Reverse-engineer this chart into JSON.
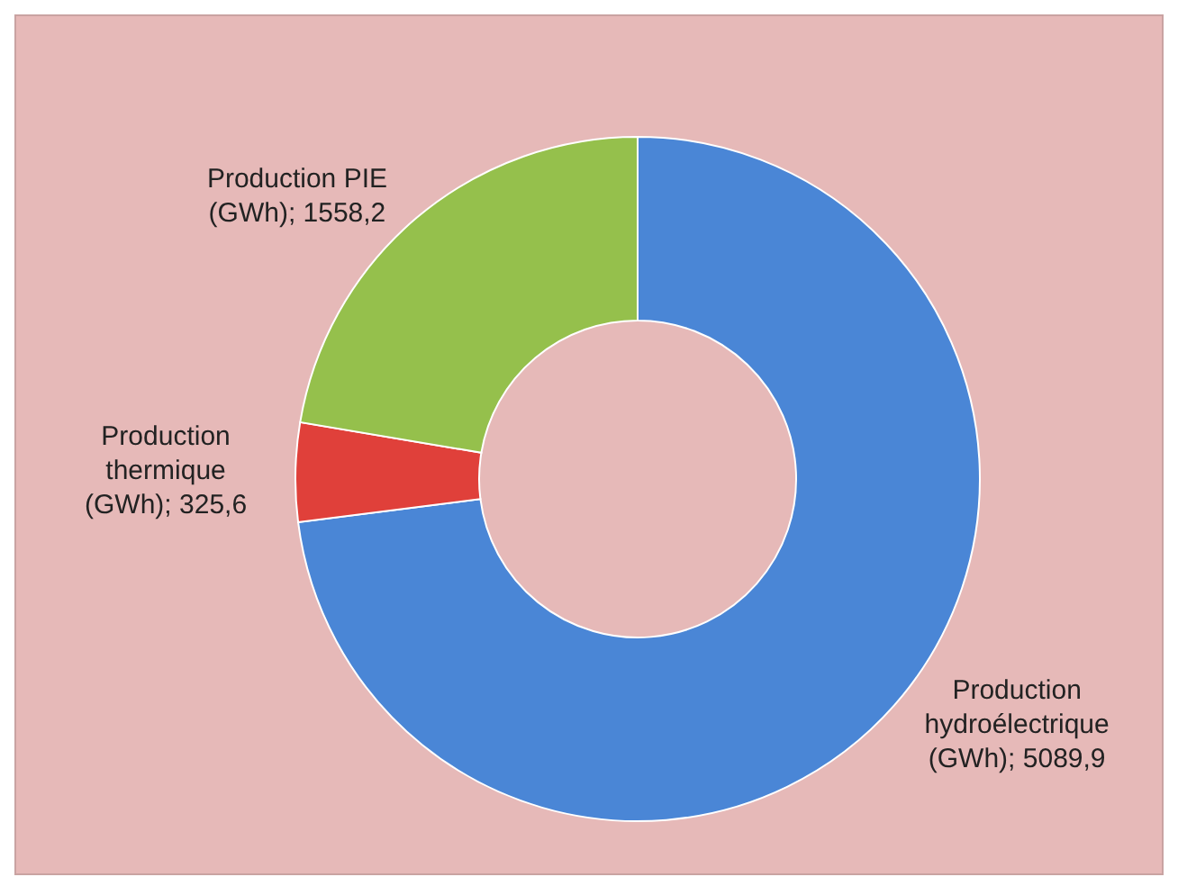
{
  "chart_data": {
    "type": "donut",
    "categories": [
      "Production hydroélectrique (GWh)",
      "Production thermique (GWh)",
      "Production PIE (GWh)"
    ],
    "values": [
      5089.9,
      325.6,
      1558.2
    ],
    "value_labels": [
      "5089,9",
      "325,6",
      "1558,2"
    ],
    "colors": [
      "#4a86d6",
      "#e0403a",
      "#95c04c"
    ],
    "legend": false
  }
}
